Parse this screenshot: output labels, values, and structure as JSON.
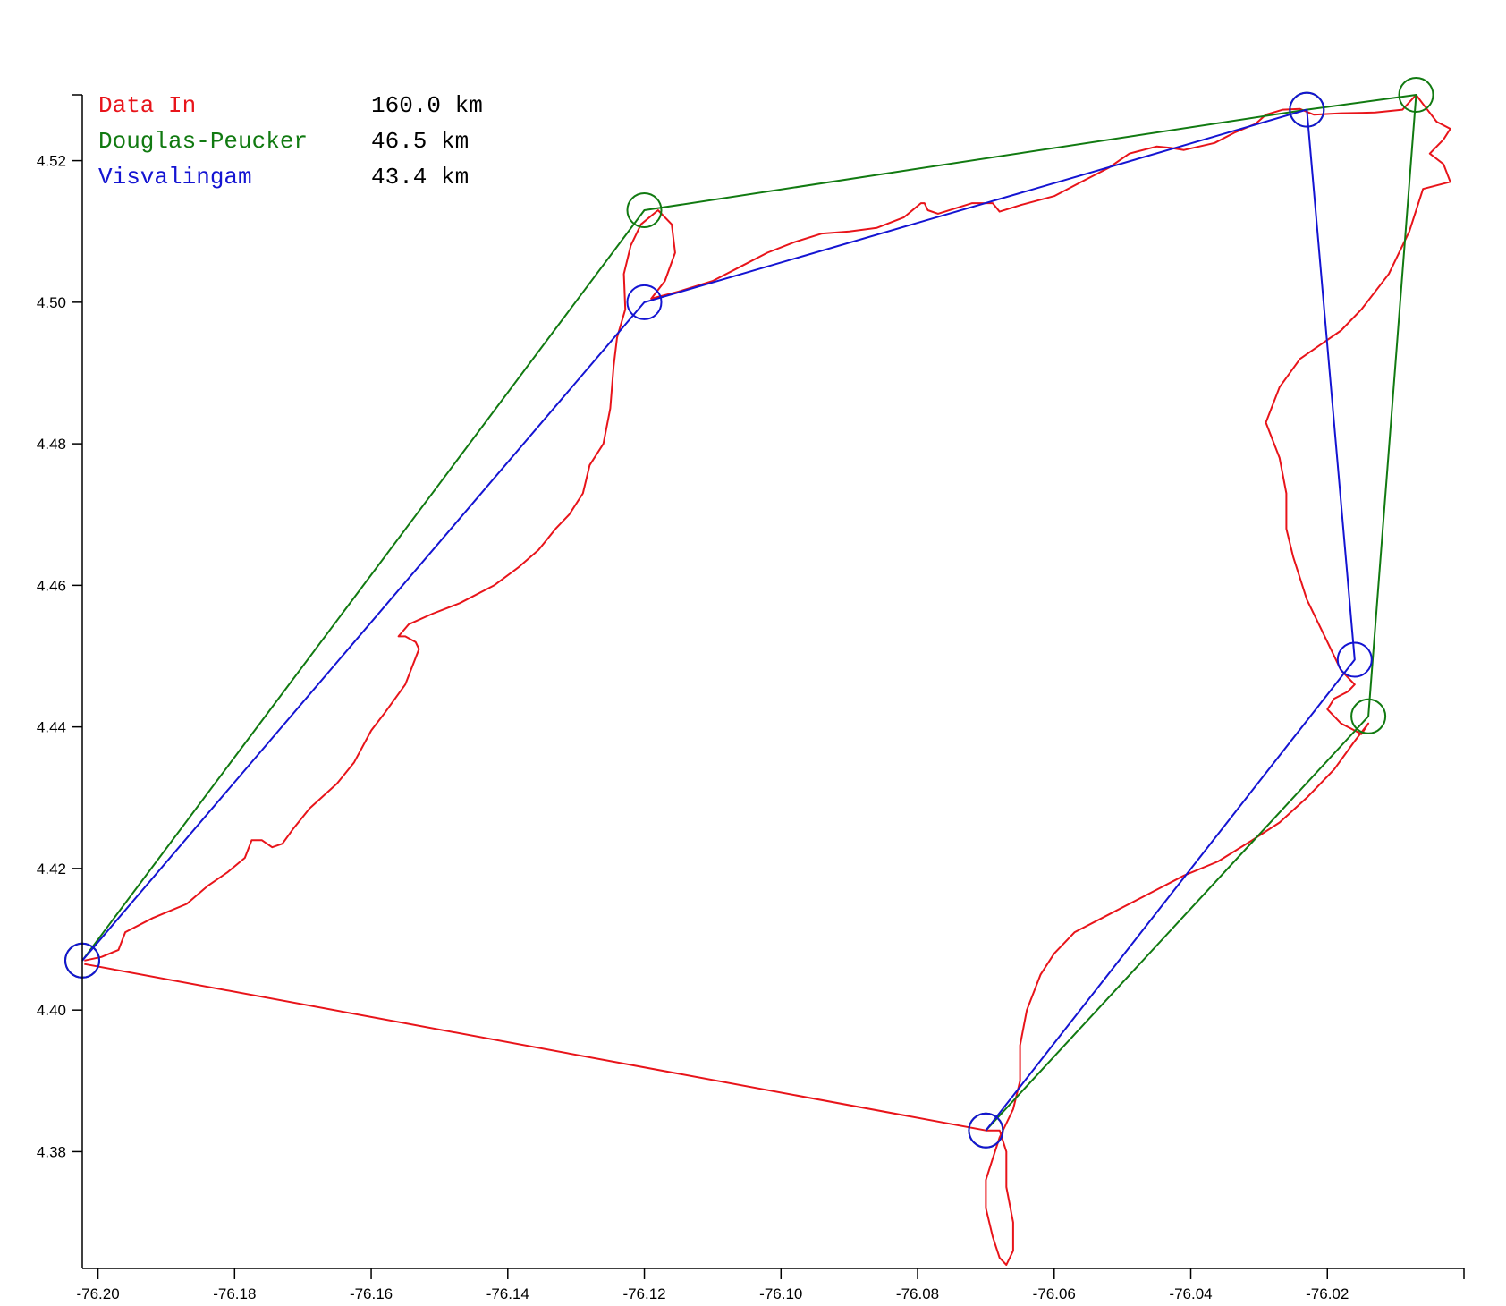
{
  "chart_data": {
    "type": "line",
    "title": "",
    "xlabel": "",
    "ylabel": "",
    "xlim": [
      -76.2023,
      -76.0
    ],
    "ylim": [
      4.3635,
      4.5293
    ],
    "x_ticks": [
      -76.2,
      -76.18,
      -76.16,
      -76.14,
      -76.12,
      -76.1,
      -76.08,
      -76.06,
      -76.04,
      -76.02
    ],
    "y_ticks": [
      4.38,
      4.4,
      4.42,
      4.44,
      4.46,
      4.48,
      4.5,
      4.52
    ],
    "legend_position": "top-left",
    "legend": [
      {
        "label": "Data In",
        "value": "160.0 km",
        "color": "#e8141a"
      },
      {
        "label": "Douglas-Peucker",
        "value": "46.5 km",
        "color": "#117a11"
      },
      {
        "label": "Visvalingam",
        "value": "43.4 km",
        "color": "#1414d2"
      }
    ],
    "series": [
      {
        "name": "Data In",
        "color": "#e8141a",
        "points": [
          [
            -76.202,
            4.407
          ],
          [
            -76.1995,
            4.4075
          ],
          [
            -76.197,
            4.4085
          ],
          [
            -76.196,
            4.411
          ],
          [
            -76.192,
            4.413
          ],
          [
            -76.187,
            4.415
          ],
          [
            -76.184,
            4.4175
          ],
          [
            -76.181,
            4.4195
          ],
          [
            -76.1785,
            4.4215
          ],
          [
            -76.1775,
            4.424
          ],
          [
            -76.176,
            4.424
          ],
          [
            -76.1745,
            4.423
          ],
          [
            -76.173,
            4.4235
          ],
          [
            -76.1715,
            4.4255
          ],
          [
            -76.169,
            4.4285
          ],
          [
            -76.165,
            4.432
          ],
          [
            -76.1625,
            4.435
          ],
          [
            -76.16,
            4.4395
          ],
          [
            -76.158,
            4.442
          ],
          [
            -76.155,
            4.446
          ],
          [
            -76.153,
            4.451
          ],
          [
            -76.1535,
            4.452
          ],
          [
            -76.155,
            4.4528
          ],
          [
            -76.156,
            4.4528
          ],
          [
            -76.1545,
            4.4545
          ],
          [
            -76.151,
            4.456
          ],
          [
            -76.147,
            4.4575
          ],
          [
            -76.142,
            4.46
          ],
          [
            -76.1385,
            4.4625
          ],
          [
            -76.1355,
            4.465
          ],
          [
            -76.133,
            4.468
          ],
          [
            -76.131,
            4.47
          ],
          [
            -76.129,
            4.473
          ],
          [
            -76.128,
            4.477
          ],
          [
            -76.126,
            4.48
          ],
          [
            -76.125,
            4.485
          ],
          [
            -76.1245,
            4.491
          ],
          [
            -76.124,
            4.495
          ],
          [
            -76.1228,
            4.499
          ],
          [
            -76.123,
            4.504
          ],
          [
            -76.122,
            4.508
          ],
          [
            -76.1205,
            4.511
          ],
          [
            -76.118,
            4.513
          ],
          [
            -76.116,
            4.511
          ],
          [
            -76.1155,
            4.507
          ],
          [
            -76.117,
            4.503
          ],
          [
            -76.119,
            4.5005
          ],
          [
            -76.115,
            4.5015
          ],
          [
            -76.11,
            4.503
          ],
          [
            -76.106,
            4.505
          ],
          [
            -76.102,
            4.507
          ],
          [
            -76.098,
            4.5085
          ],
          [
            -76.094,
            4.5097
          ],
          [
            -76.09,
            4.51
          ],
          [
            -76.086,
            4.5105
          ],
          [
            -76.082,
            4.512
          ],
          [
            -76.0795,
            4.514
          ],
          [
            -76.079,
            4.514
          ],
          [
            -76.0785,
            4.513
          ],
          [
            -76.077,
            4.5125
          ],
          [
            -76.072,
            4.514
          ],
          [
            -76.069,
            4.514
          ],
          [
            -76.068,
            4.5128
          ],
          [
            -76.065,
            4.5137
          ],
          [
            -76.06,
            4.515
          ],
          [
            -76.056,
            4.517
          ],
          [
            -76.052,
            4.519
          ],
          [
            -76.049,
            4.521
          ],
          [
            -76.045,
            4.522
          ],
          [
            -76.043,
            4.5218
          ],
          [
            -76.041,
            4.5215
          ],
          [
            -76.0365,
            4.5225
          ],
          [
            -76.0335,
            4.524
          ],
          [
            -76.0305,
            4.5252
          ],
          [
            -76.029,
            4.5265
          ],
          [
            -76.0265,
            4.5272
          ],
          [
            -76.024,
            4.5273
          ],
          [
            -76.022,
            4.5265
          ],
          [
            -76.018,
            4.5267
          ],
          [
            -76.013,
            4.5268
          ],
          [
            -76.009,
            4.5272
          ],
          [
            -76.007,
            4.5293
          ],
          [
            -76.006,
            4.528
          ],
          [
            -76.004,
            4.5255
          ],
          [
            -76.002,
            4.5245
          ],
          [
            -76.003,
            4.523
          ],
          [
            -76.005,
            4.521
          ],
          [
            -76.003,
            4.5195
          ],
          [
            -76.002,
            4.517
          ],
          [
            -76.006,
            4.516
          ],
          [
            -76.008,
            4.51
          ],
          [
            -76.011,
            4.504
          ],
          [
            -76.015,
            4.499
          ],
          [
            -76.018,
            4.496
          ],
          [
            -76.021,
            4.494
          ],
          [
            -76.024,
            4.492
          ],
          [
            -76.027,
            4.488
          ],
          [
            -76.029,
            4.483
          ],
          [
            -76.027,
            4.478
          ],
          [
            -76.026,
            4.473
          ],
          [
            -76.026,
            4.468
          ],
          [
            -76.025,
            4.464
          ],
          [
            -76.023,
            4.458
          ],
          [
            -76.02,
            4.452
          ],
          [
            -76.018,
            4.448
          ],
          [
            -76.016,
            4.446
          ],
          [
            -76.017,
            4.445
          ],
          [
            -76.019,
            4.444
          ],
          [
            -76.02,
            4.4425
          ],
          [
            -76.018,
            4.4405
          ],
          [
            -76.016,
            4.4395
          ],
          [
            -76.015,
            4.439
          ],
          [
            -76.014,
            4.4405
          ],
          [
            -76.016,
            4.438
          ],
          [
            -76.019,
            4.434
          ],
          [
            -76.023,
            4.43
          ],
          [
            -76.027,
            4.4265
          ],
          [
            -76.031,
            4.424
          ],
          [
            -76.036,
            4.421
          ],
          [
            -76.041,
            4.419
          ],
          [
            -76.046,
            4.4165
          ],
          [
            -76.052,
            4.4135
          ],
          [
            -76.057,
            4.411
          ],
          [
            -76.06,
            4.408
          ],
          [
            -76.062,
            4.405
          ],
          [
            -76.064,
            4.4
          ],
          [
            -76.065,
            4.395
          ],
          [
            -76.065,
            4.39
          ],
          [
            -76.066,
            4.386
          ],
          [
            -76.068,
            4.382
          ],
          [
            -76.069,
            4.379
          ],
          [
            -76.07,
            4.376
          ],
          [
            -76.07,
            4.372
          ],
          [
            -76.069,
            4.368
          ],
          [
            -76.068,
            4.365
          ],
          [
            -76.067,
            4.364
          ],
          [
            -76.066,
            4.366
          ],
          [
            -76.066,
            4.37
          ],
          [
            -76.067,
            4.375
          ],
          [
            -76.067,
            4.38
          ],
          [
            -76.068,
            4.383
          ],
          [
            -76.07,
            4.383
          ],
          [
            -76.202,
            4.4065
          ]
        ]
      },
      {
        "name": "Douglas-Peucker",
        "color": "#117a11",
        "markers": true,
        "points": [
          [
            -76.2023,
            4.407
          ],
          [
            -76.12,
            4.513
          ],
          [
            -76.023,
            4.5272
          ],
          [
            -76.007,
            4.5293
          ],
          [
            -76.014,
            4.4415
          ],
          [
            -76.07,
            4.383
          ]
        ]
      },
      {
        "name": "Visvalingam",
        "color": "#1414d2",
        "markers": true,
        "points": [
          [
            -76.2023,
            4.407
          ],
          [
            -76.12,
            4.5
          ],
          [
            -76.023,
            4.5272
          ],
          [
            -76.016,
            4.4495
          ],
          [
            -76.07,
            4.383
          ]
        ]
      }
    ]
  }
}
